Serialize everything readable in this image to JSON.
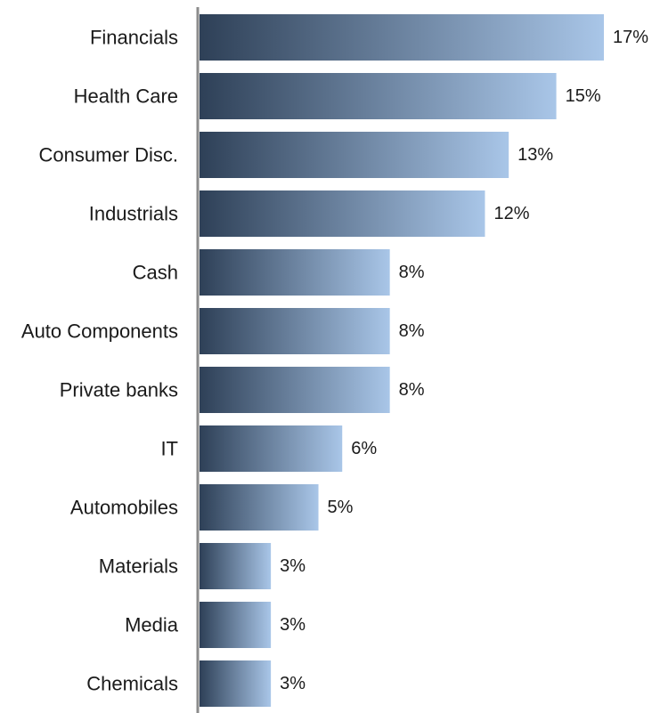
{
  "chart_data": {
    "type": "bar",
    "orientation": "horizontal",
    "categories": [
      "Financials",
      "Health Care",
      "Consumer Disc.",
      "Industrials",
      "Cash",
      "Auto Components",
      "Private banks",
      "IT",
      "Automobiles",
      "Materials",
      "Media",
      "Chemicals"
    ],
    "values": [
      17,
      15,
      13,
      12,
      8,
      8,
      8,
      6,
      5,
      3,
      3,
      3
    ],
    "value_labels": [
      "17%",
      "15%",
      "13%",
      "12%",
      "8%",
      "8%",
      "8%",
      "6%",
      "5%",
      "3%",
      "3%",
      "3%"
    ],
    "title": "",
    "xlabel": "",
    "ylabel": "",
    "xlim": [
      0,
      17
    ],
    "grid": false,
    "legend": "none",
    "colors": {
      "bar_gradient_start": "#2e4057",
      "bar_gradient_end": "#a9c6e8",
      "axis_line": "#8c8c8c",
      "text": "#1a1a1a"
    }
  }
}
